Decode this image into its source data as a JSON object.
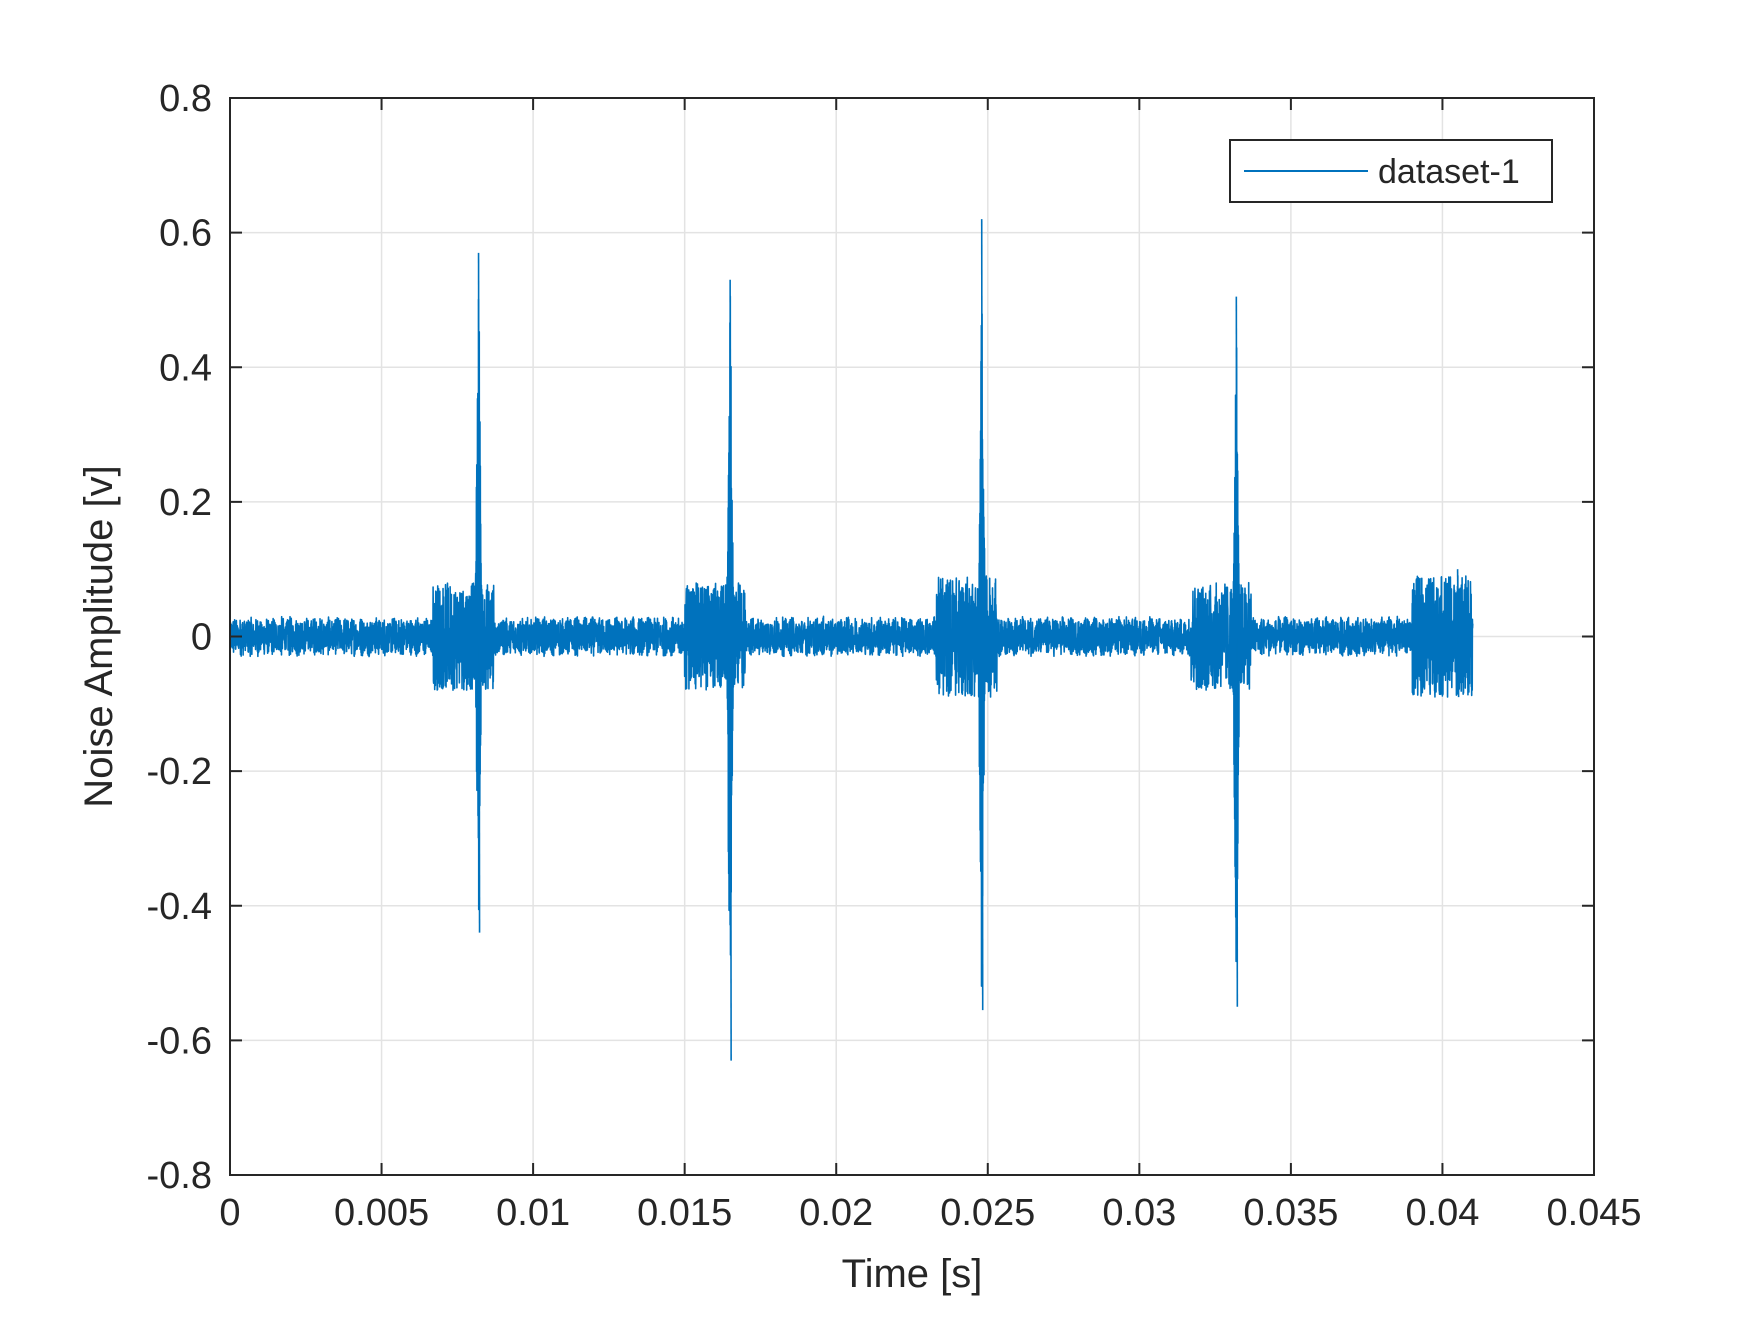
{
  "chart_data": {
    "type": "line",
    "title": "",
    "xlabel": "Time [s]",
    "ylabel": "Noise Amplitude [v]",
    "xlim": [
      0,
      0.045
    ],
    "ylim": [
      -0.8,
      0.8
    ],
    "xticks": [
      0,
      0.005,
      0.01,
      0.015,
      0.02,
      0.025,
      0.03,
      0.035,
      0.04,
      0.045
    ],
    "xtick_labels": [
      "0",
      "0.005",
      "0.01",
      "0.015",
      "0.02",
      "0.025",
      "0.03",
      "0.035",
      "0.04",
      "0.045"
    ],
    "yticks": [
      -0.8,
      -0.6,
      -0.4,
      -0.2,
      0,
      0.2,
      0.4,
      0.6,
      0.8
    ],
    "ytick_labels": [
      "-0.8",
      "-0.6",
      "-0.4",
      "-0.2",
      "0",
      "0.2",
      "0.4",
      "0.6",
      "0.8"
    ],
    "grid": true,
    "legend_position": "top-right",
    "colors": {
      "series": "#0072BD",
      "axes": "#262626",
      "grid": "#E3E3E3"
    },
    "series": [
      {
        "name": "dataset-1",
        "x_start": 0,
        "x_end": 0.041,
        "baseline_noise_amplitude": 0.03,
        "bursts": [
          {
            "center": 0.0082,
            "peak_positive": 0.57,
            "peak_negative": -0.44,
            "pre_noise_amplitude": 0.08
          },
          {
            "center": 0.0165,
            "peak_positive": 0.53,
            "peak_negative": -0.63,
            "pre_noise_amplitude": 0.08
          },
          {
            "center": 0.0248,
            "peak_positive": 0.62,
            "peak_negative": -0.555,
            "pre_noise_amplitude": 0.09
          },
          {
            "center": 0.0332,
            "peak_positive": 0.505,
            "peak_negative": -0.55,
            "pre_noise_amplitude": 0.08
          },
          {
            "center": 0.0405,
            "peak_positive": 0.1,
            "peak_negative": -0.09,
            "pre_noise_amplitude": 0.09
          }
        ]
      }
    ]
  }
}
